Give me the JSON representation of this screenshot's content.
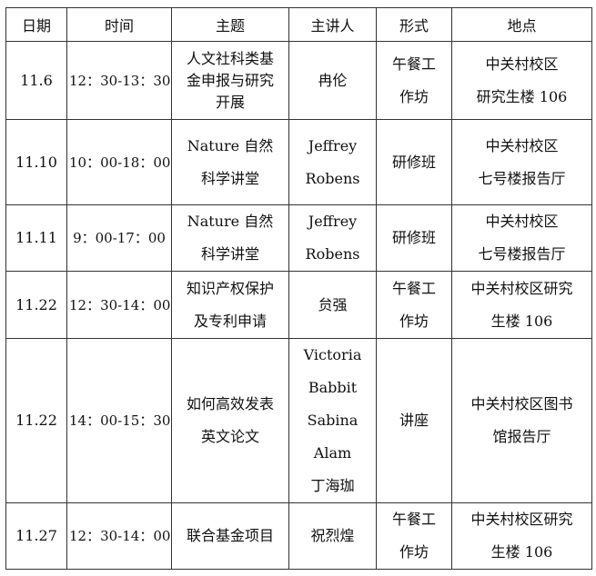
{
  "headers": [
    "日期",
    "时间",
    "主题",
    "主讲人",
    "形式",
    "地点"
  ],
  "rows": [
    {
      "date": [
        "11.6"
      ],
      "time": [
        "12：30-13：30"
      ],
      "topic": [
        "人文社科类基",
        "金申报与研究",
        "开展"
      ],
      "speaker": [
        "冉伦"
      ],
      "format": [
        "午餐工",
        "作坊"
      ],
      "location": [
        "中关村校区",
        "研究生楼 106"
      ]
    },
    {
      "date": [
        "11.10"
      ],
      "time": [
        "10：00-18：00"
      ],
      "topic": [
        "Nature 自然",
        "科学讲堂"
      ],
      "speaker": [
        "Jeffrey",
        "Robens"
      ],
      "format": [
        "研修班"
      ],
      "location": [
        "中关村校区",
        "七号楼报告厅"
      ]
    },
    {
      "date": [
        "11.11"
      ],
      "time": [
        "9：00-17：00"
      ],
      "topic": [
        "Nature 自然",
        "科学讲堂"
      ],
      "speaker": [
        "Jeffrey",
        "Robens"
      ],
      "format": [
        "研修班"
      ],
      "location": [
        "中关村校区",
        "七号楼报告厅"
      ]
    },
    {
      "date": [
        "11.22"
      ],
      "time": [
        "12：30-14：00"
      ],
      "topic": [
        "知识产权保护",
        "及专利申请"
      ],
      "speaker": [
        "贠强"
      ],
      "format": [
        "午餐工",
        "作坊"
      ],
      "location": [
        "中关村校区研究",
        "生楼 106"
      ]
    },
    {
      "date": [
        "11.22"
      ],
      "time": [
        "14：00-15：30"
      ],
      "topic": [
        "如何高效发表",
        "英文论文"
      ],
      "speaker": [
        "Victoria",
        "Babbit",
        "Sabina",
        "Alam",
        "丁海珈"
      ],
      "format": [
        "讲座"
      ],
      "location": [
        "中关村校区图书",
        "馆报告厅"
      ]
    },
    {
      "date": [
        "11.27"
      ],
      "time": [
        "12：30-14：00"
      ],
      "topic": [
        "联合基金项目"
      ],
      "speaker": [
        "祝烈煌"
      ],
      "format": [
        "午餐工",
        "作坊"
      ],
      "location": [
        "中关村校区研究",
        "生楼 106"
      ]
    }
  ]
}
